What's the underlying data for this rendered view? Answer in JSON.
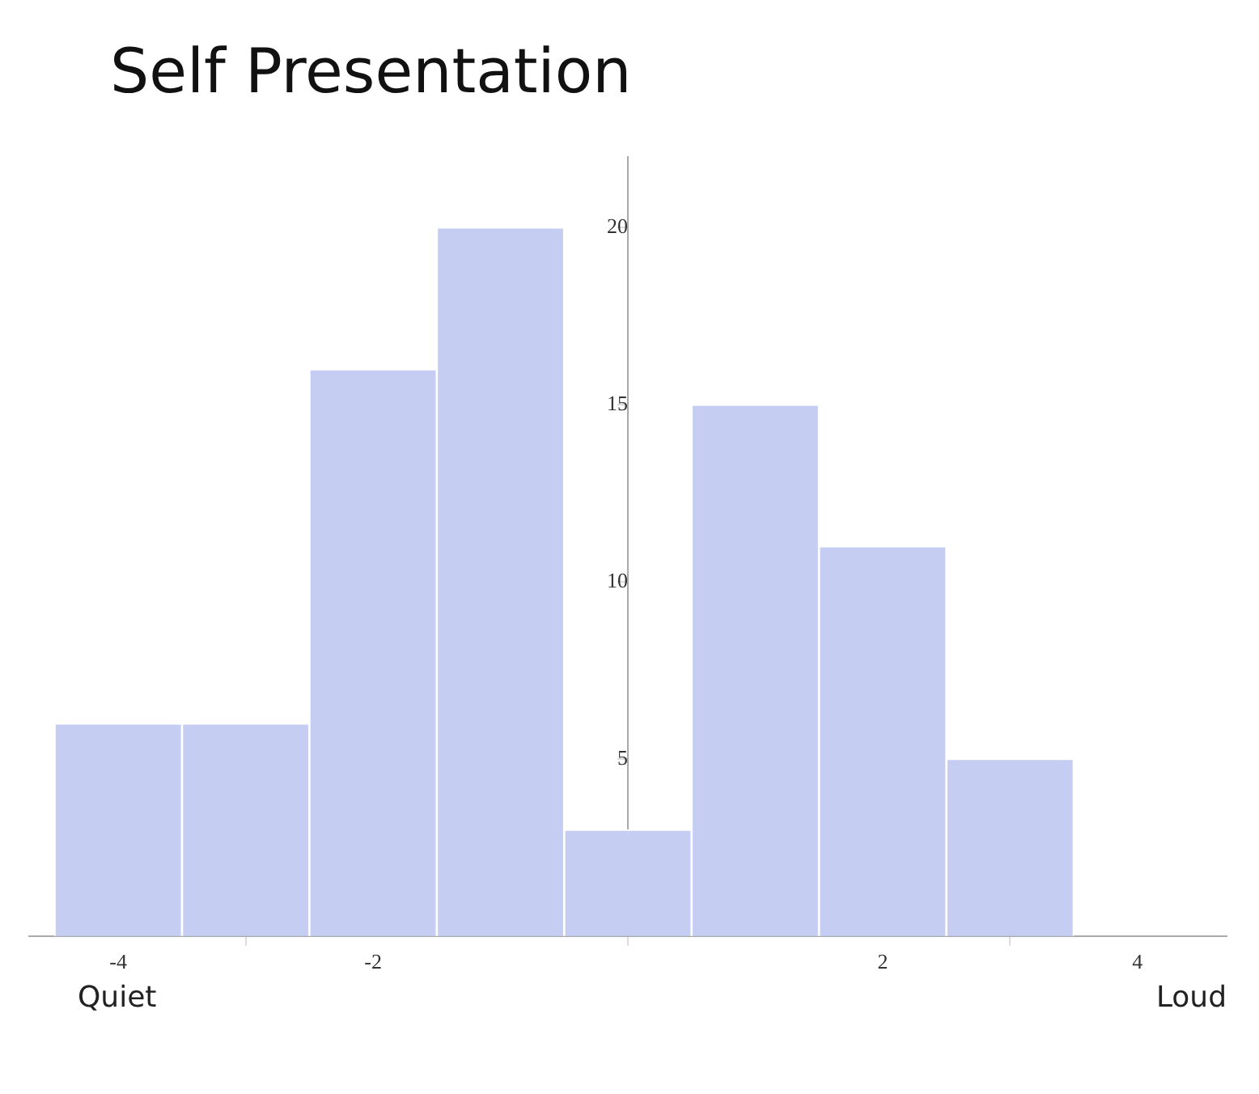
{
  "chart_data": {
    "type": "histogram",
    "title": "Self Presentation",
    "bins": [
      -4.5,
      -3.5,
      -2.5,
      -1.5,
      -0.5,
      0.5,
      1.5,
      2.5,
      3.5
    ],
    "values": [
      6,
      6,
      16,
      20,
      3,
      15,
      11,
      5
    ],
    "color": "#c5cdf3",
    "xlim": [
      -4.7,
      4.7
    ],
    "xticks": [
      -4,
      -2,
      2,
      4
    ],
    "ylim": [
      0,
      22
    ],
    "yticks": [
      5,
      10,
      15,
      20
    ],
    "annotations": [
      "Quiet",
      "Loud"
    ],
    "grid": false,
    "legend": false
  }
}
